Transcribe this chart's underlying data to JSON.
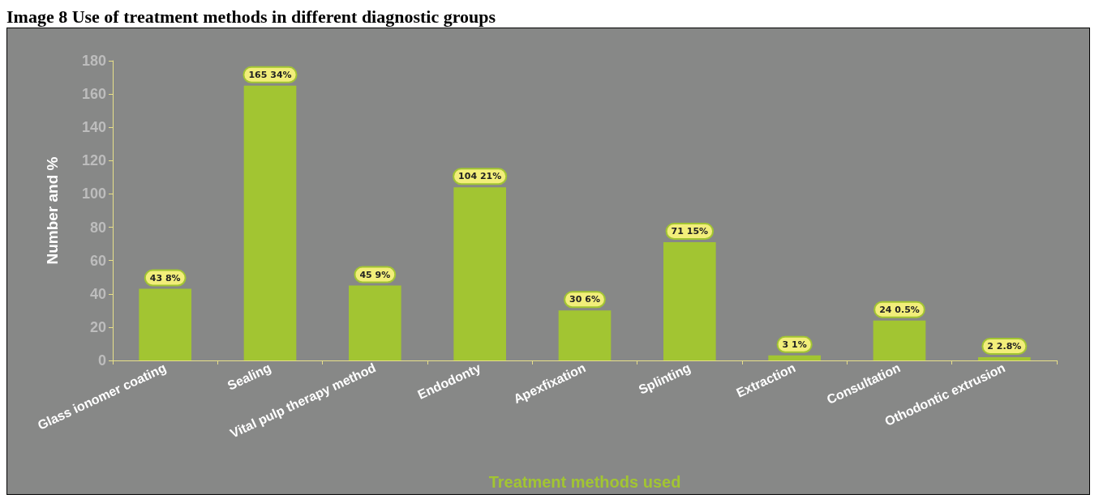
{
  "chart_data": {
    "type": "bar",
    "title": "Image 8 Use of treatment methods in different diagnostic groups",
    "xlabel": "Treatment methods used",
    "ylabel": "Number and %",
    "categories": [
      "Glass ionomer coating",
      "Sealing",
      "Vital pulp therapy method",
      "Endodonty",
      "Apexfixation",
      "Splinting",
      "Extraction",
      "Consultation",
      "Othodontic extrusion"
    ],
    "values": [
      43,
      165,
      45,
      104,
      30,
      71,
      3,
      24,
      2
    ],
    "value_labels": [
      "43 8%",
      "165 34%",
      "45 9%",
      "104 21%",
      "30 6%",
      "71 15%",
      "3 1%",
      "24 0.5%",
      "2 2.8%"
    ],
    "color": "#a2c532",
    "ylim": [
      0,
      180
    ],
    "yticks": [
      0,
      20,
      40,
      60,
      80,
      100,
      120,
      140,
      160,
      180
    ]
  }
}
